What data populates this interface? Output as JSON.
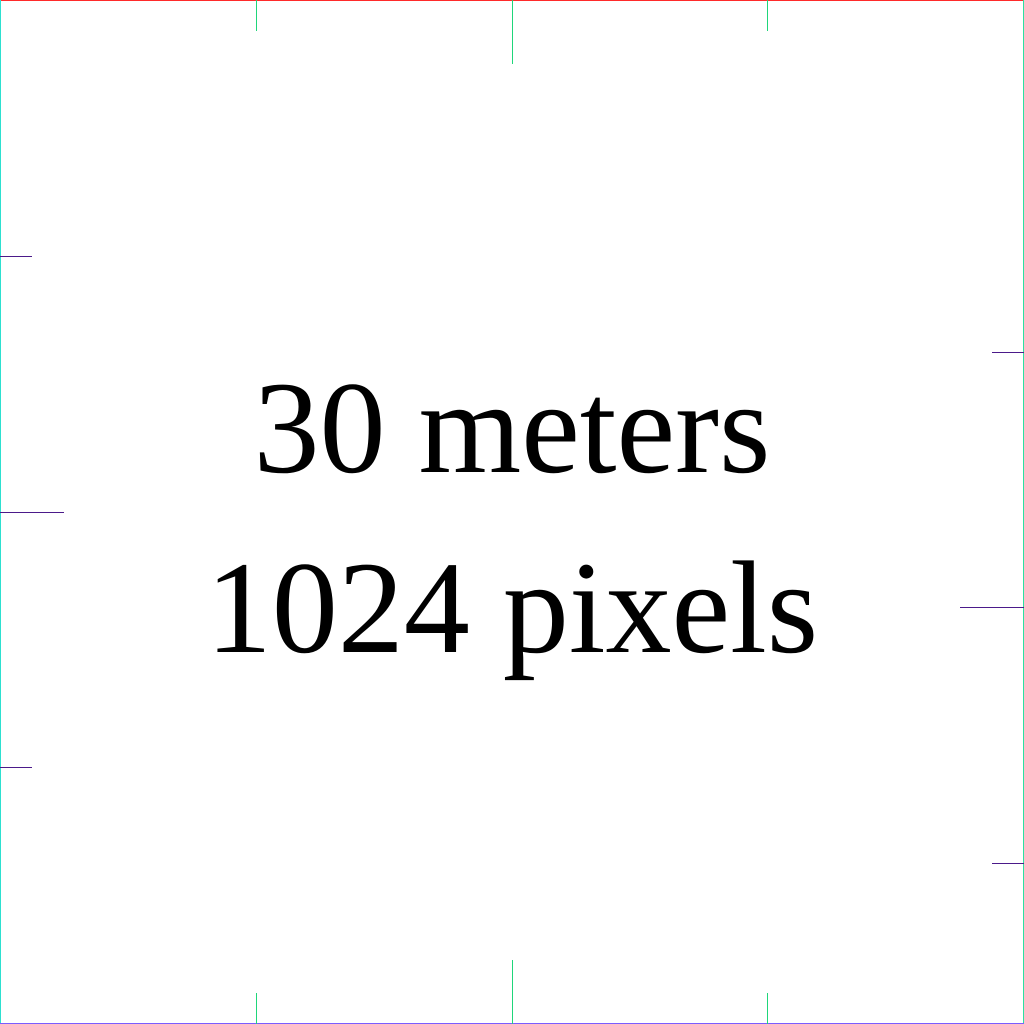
{
  "label": {
    "line1": "30 meters",
    "line2": "1024 pixels"
  },
  "colors": {
    "background": "#ffffff",
    "text": "#000000",
    "edge_top": "#ff2a2a",
    "edge_left": "#2de0d0",
    "edge_right": "#2de0a0",
    "edge_bottom": "#7a5cff",
    "tick_vertical": "#1fd67a",
    "tick_horizontal": "#4b1a8a"
  }
}
